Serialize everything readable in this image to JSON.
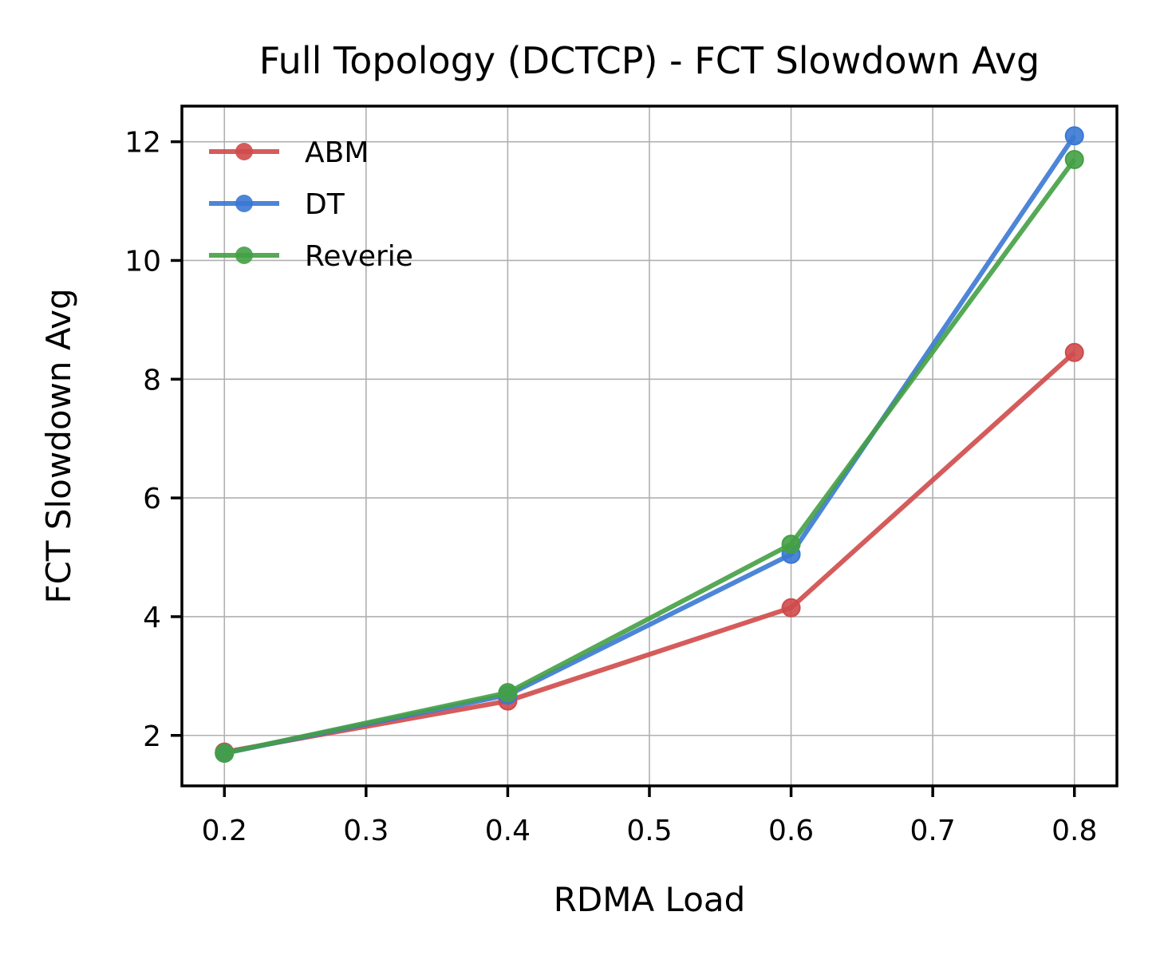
{
  "chart_data": {
    "type": "line",
    "title": "Full Topology (DCTCP) - FCT Slowdown Avg",
    "xlabel": "RDMA Load",
    "ylabel": "FCT Slowdown Avg",
    "x": [
      0.2,
      0.4,
      0.6,
      0.8
    ],
    "xlim": [
      0.17,
      0.83
    ],
    "ylim": [
      1.15,
      12.6
    ],
    "xticks": [
      "0.2",
      "0.3",
      "0.4",
      "0.5",
      "0.6",
      "0.7",
      "0.8"
    ],
    "xtick_values": [
      0.2,
      0.3,
      0.4,
      0.5,
      0.6,
      0.7,
      0.8
    ],
    "yticks": [
      "2",
      "4",
      "6",
      "8",
      "10",
      "12"
    ],
    "ytick_values": [
      2,
      4,
      6,
      8,
      10,
      12
    ],
    "grid": true,
    "legend_position": "top-left",
    "series": [
      {
        "name": "ABM",
        "color": "#d04a4a",
        "values": [
          1.72,
          2.58,
          4.15,
          8.45
        ]
      },
      {
        "name": "DT",
        "color": "#3a78d4",
        "values": [
          1.7,
          2.68,
          5.05,
          12.1
        ]
      },
      {
        "name": "Reverie",
        "color": "#44a044",
        "values": [
          1.7,
          2.72,
          5.22,
          11.7
        ]
      }
    ]
  }
}
